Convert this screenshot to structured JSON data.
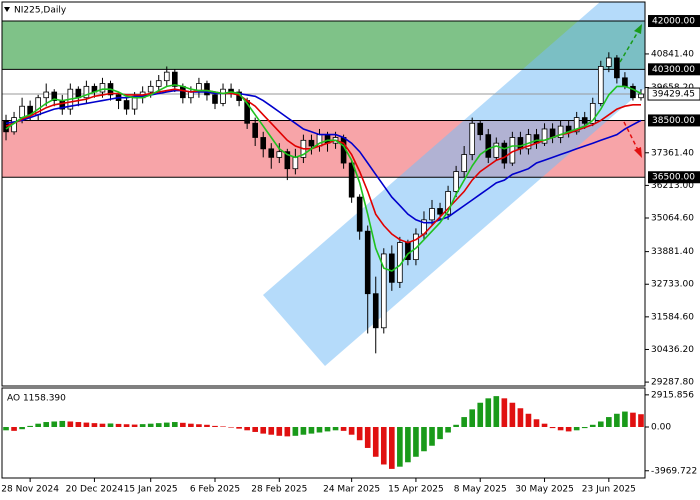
{
  "chart_data": [
    {
      "type": "candlestick",
      "title": "NI225,Daily",
      "categories": [
        null,
        null,
        null,
        "28 Nov 2024",
        null,
        null,
        null,
        null,
        null,
        null,
        null,
        "20 Dec 2024",
        null,
        null,
        null,
        null,
        null,
        null,
        "15 Jan 2025",
        null,
        null,
        null,
        null,
        null,
        null,
        null,
        "6 Feb 2025",
        null,
        null,
        null,
        null,
        null,
        null,
        null,
        "28 Feb 2025",
        null,
        null,
        null,
        null,
        null,
        null,
        null,
        null,
        "24 Mar 2025",
        null,
        null,
        null,
        null,
        null,
        null,
        null,
        "15 Apr 2025",
        null,
        null,
        null,
        null,
        null,
        null,
        null,
        "8 May 2025",
        null,
        null,
        null,
        null,
        null,
        null,
        null,
        "30 May 2025",
        null,
        null,
        null,
        null,
        null,
        null,
        null,
        "23 Jun 2025",
        null,
        null,
        null,
        null
      ],
      "open": [
        38500,
        38100,
        38600,
        39000,
        38700,
        39300,
        39500,
        39200,
        38900,
        39600,
        39300,
        39700,
        39500,
        39800,
        39400,
        39200,
        38900,
        39300,
        39500,
        39700,
        39900,
        40200,
        39700,
        39300,
        39500,
        39800,
        39400,
        39100,
        39600,
        39500,
        39200,
        38400,
        37900,
        37500,
        37200,
        37400,
        36800,
        37200,
        37800,
        37600,
        38000,
        37700,
        37900,
        37000,
        35800,
        34600,
        32400,
        31200,
        33800,
        32800,
        34200,
        33600,
        34500,
        35000,
        35400,
        35200,
        36000,
        36700,
        37300,
        38400,
        38000,
        37200,
        37700,
        37000,
        37900,
        37500,
        38000,
        37700,
        38200,
        37900,
        38300,
        38100,
        38600,
        38400,
        39100,
        40400,
        40700,
        40000,
        39700,
        39300
      ],
      "high": [
        38700,
        38800,
        39300,
        39200,
        39400,
        39800,
        39600,
        39400,
        39800,
        39700,
        39900,
        39800,
        40000,
        39900,
        39500,
        39300,
        39500,
        39700,
        39900,
        40100,
        40400,
        40300,
        39800,
        39700,
        40000,
        39900,
        39500,
        39800,
        39800,
        39600,
        39300,
        38600,
        38100,
        37700,
        37700,
        37500,
        37500,
        38000,
        38000,
        38200,
        38100,
        38100,
        38000,
        37100,
        35900,
        34800,
        33000,
        34000,
        34100,
        34400,
        34300,
        34700,
        35300,
        35700,
        35600,
        36200,
        36900,
        37600,
        38600,
        38500,
        38200,
        37900,
        37800,
        38100,
        38100,
        38200,
        38200,
        38400,
        38400,
        38500,
        38500,
        38800,
        38800,
        39300,
        40600,
        40900,
        40800,
        40200,
        39800,
        39600
      ],
      "low": [
        37800,
        38000,
        38400,
        38500,
        38500,
        39000,
        39000,
        38700,
        38700,
        39000,
        39100,
        39300,
        39300,
        39200,
        38900,
        38700,
        38700,
        39100,
        39300,
        39500,
        39700,
        39500,
        39100,
        39100,
        39300,
        39200,
        38900,
        39000,
        39300,
        39000,
        38200,
        37600,
        37200,
        36800,
        37000,
        36400,
        36600,
        37000,
        37300,
        37400,
        37400,
        37500,
        36800,
        35600,
        34300,
        31000,
        30300,
        31000,
        32500,
        32600,
        33400,
        33400,
        34300,
        34800,
        35000,
        35000,
        35800,
        36500,
        37100,
        37800,
        37000,
        37100,
        36800,
        36900,
        37300,
        37300,
        37500,
        37600,
        37700,
        37700,
        37900,
        38000,
        38200,
        38300,
        39000,
        40200,
        39800,
        39600,
        39200,
        39200
      ],
      "close": [
        38100,
        38600,
        39000,
        38700,
        39300,
        39500,
        39200,
        38900,
        39600,
        39300,
        39700,
        39500,
        39800,
        39400,
        39200,
        38900,
        39300,
        39500,
        39700,
        39900,
        40200,
        39700,
        39300,
        39500,
        39800,
        39400,
        39100,
        39600,
        39500,
        39200,
        38400,
        37900,
        37500,
        37200,
        37400,
        36800,
        37200,
        37800,
        37600,
        38000,
        37700,
        37900,
        37000,
        35800,
        34600,
        32400,
        31200,
        33800,
        32800,
        34200,
        33600,
        34500,
        35000,
        35400,
        35200,
        36000,
        36700,
        37300,
        38400,
        38000,
        37200,
        37700,
        37000,
        37900,
        37500,
        38000,
        37700,
        38200,
        37900,
        38300,
        38100,
        38600,
        38400,
        39100,
        40400,
        40700,
        40000,
        39700,
        39300,
        39429.45
      ],
      "up_color": "#ffffff",
      "down_color": "#000000",
      "outline_color": "#000000",
      "lines": [
        {
          "color": "#0000cc",
          "values": [
            38400,
            38450,
            38500,
            38600,
            38700,
            38800,
            38900,
            38950,
            39000,
            39050,
            39100,
            39150,
            39200,
            39250,
            39300,
            39300,
            39350,
            39350,
            39400,
            39450,
            39500,
            39550,
            39550,
            39500,
            39500,
            39500,
            39450,
            39450,
            39450,
            39450,
            39400,
            39350,
            39200,
            39000,
            38800,
            38600,
            38400,
            38200,
            38100,
            38000,
            38000,
            38000,
            37900,
            37700,
            37400,
            37000,
            36600,
            36200,
            35800,
            35500,
            35200,
            35000,
            34900,
            34900,
            35000,
            35100,
            35300,
            35500,
            35700,
            35900,
            36100,
            36300,
            36400,
            36600,
            36700,
            36800,
            37000,
            37100,
            37200,
            37300,
            37400,
            37500,
            37600,
            37700,
            37800,
            37900,
            38000,
            38200,
            38350,
            38500
          ]
        },
        {
          "color": "#e00000",
          "values": [
            38300,
            38400,
            38550,
            38650,
            38800,
            38950,
            39050,
            39100,
            39150,
            39200,
            39250,
            39350,
            39400,
            39450,
            39450,
            39400,
            39400,
            39400,
            39450,
            39500,
            39550,
            39600,
            39550,
            39500,
            39550,
            39550,
            39500,
            39450,
            39450,
            39400,
            39200,
            39000,
            38700,
            38400,
            38100,
            37800,
            37600,
            37500,
            37500,
            37600,
            37700,
            37800,
            37700,
            37300,
            36700,
            36000,
            35200,
            34800,
            34500,
            34300,
            34200,
            34300,
            34500,
            34800,
            35100,
            35400,
            35700,
            36000,
            36400,
            36700,
            36900,
            37100,
            37200,
            37400,
            37500,
            37600,
            37700,
            37800,
            37900,
            38000,
            38050,
            38150,
            38250,
            38350,
            38500,
            38700,
            38900,
            39000,
            39050,
            39050
          ]
        },
        {
          "color": "#1fc21f",
          "values": [
            38200,
            38400,
            38600,
            38700,
            38900,
            39100,
            39250,
            39200,
            39250,
            39300,
            39400,
            39500,
            39600,
            39600,
            39500,
            39350,
            39300,
            39300,
            39400,
            39550,
            39700,
            39750,
            39700,
            39600,
            39550,
            39550,
            39500,
            39450,
            39500,
            39450,
            39100,
            38700,
            38300,
            37900,
            37500,
            37300,
            37200,
            37300,
            37500,
            37700,
            37800,
            37800,
            37600,
            37100,
            36300,
            35200,
            34000,
            33300,
            33200,
            33400,
            33800,
            34000,
            34300,
            34600,
            34900,
            35300,
            35900,
            36400,
            36900,
            37300,
            37500,
            37600,
            37500,
            37600,
            37600,
            37700,
            37800,
            37800,
            37900,
            38000,
            38100,
            38200,
            38300,
            38500,
            38900,
            39400,
            39700,
            39700,
            39600,
            39450
          ]
        }
      ],
      "levels": [
        {
          "value": 42000,
          "label": "42000.00"
        },
        {
          "value": 40300,
          "label": "40300.00"
        },
        {
          "value": 38500,
          "label": "38500.00"
        },
        {
          "value": 36500,
          "label": "36500.00"
        }
      ],
      "zone_colors": [
        "#5fb36a",
        "#f58d92"
      ],
      "current_price": 39429.45,
      "ylim": [
        29150,
        42670
      ],
      "yticks": [
        {
          "value": 29287.8,
          "label": "29287.80"
        },
        {
          "value": 30436.2,
          "label": "30436.20"
        },
        {
          "value": 31584.6,
          "label": "31584.60"
        },
        {
          "value": 32733,
          "label": "32733.00"
        },
        {
          "value": 33881.4,
          "label": "33881.40"
        },
        {
          "value": 35064.6,
          "label": "35064.60"
        },
        {
          "value": 36213,
          "label": "36213.00"
        },
        {
          "value": 37361.4,
          "label": "37361.40"
        },
        {
          "value": 39658.2,
          "label": "39658.20"
        },
        {
          "value": 40841.4,
          "label": "40841.40"
        }
      ]
    },
    {
      "type": "bar",
      "title": "AO 1158.390",
      "values": [
        -300,
        -350,
        -200,
        100,
        300,
        450,
        500,
        550,
        500,
        450,
        400,
        350,
        300,
        320,
        280,
        250,
        220,
        260,
        300,
        350,
        400,
        450,
        380,
        300,
        250,
        200,
        100,
        50,
        -50,
        -150,
        -300,
        -450,
        -600,
        -700,
        -800,
        -850,
        -800,
        -700,
        -600,
        -500,
        -400,
        -300,
        -350,
        -700,
        -1200,
        -1900,
        -2700,
        -3400,
        -3800,
        -3600,
        -3200,
        -2700,
        -2200,
        -1700,
        -1100,
        -500,
        200,
        900,
        1600,
        2200,
        2600,
        2800,
        2600,
        2200,
        1700,
        1200,
        700,
        300,
        -100,
        -300,
        -400,
        -300,
        -100,
        200,
        500,
        900,
        1200,
        1400,
        1300,
        1158.39
      ],
      "up_color": "#1a9a1a",
      "down_color": "#e01010",
      "ylim": [
        -4626,
        3537
      ],
      "yticks": [
        2915.856,
        {
          "value": 0,
          "label": "0.00"
        },
        -3969.722
      ]
    }
  ]
}
